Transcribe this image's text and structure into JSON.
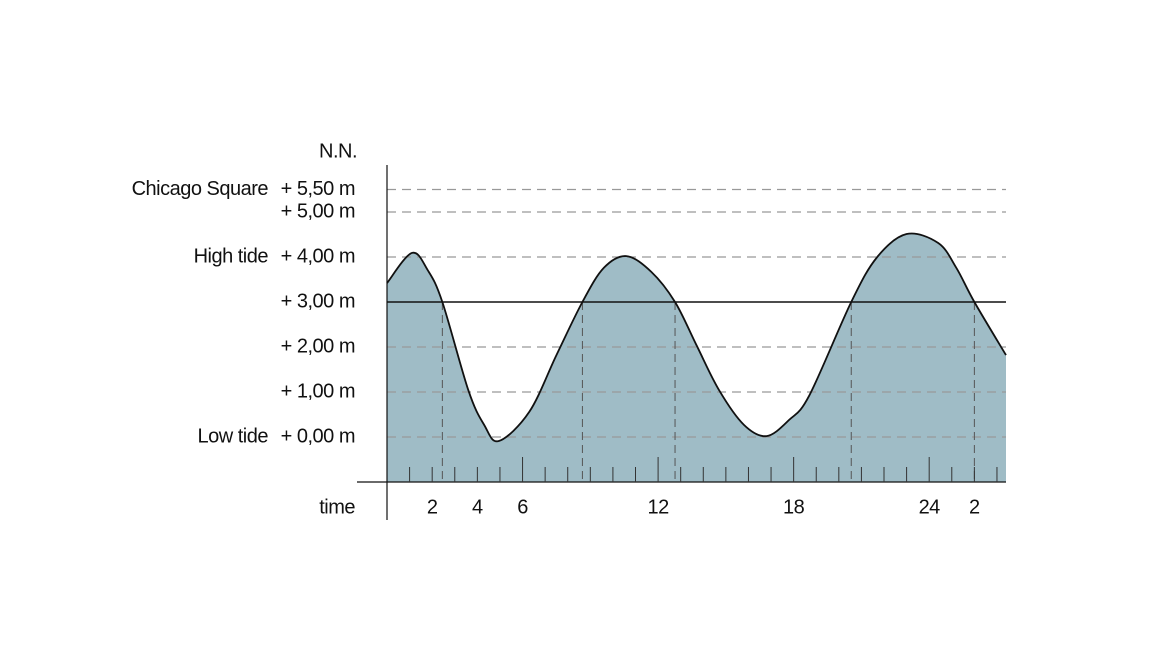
{
  "chart_data": {
    "type": "area",
    "ylabel": "N.N.",
    "xlabel": "time",
    "annotations": [
      {
        "text": "Chicago Square",
        "y": 5.5
      },
      {
        "text": "High tide",
        "y": 4
      },
      {
        "text": "Low tide",
        "y": 0
      }
    ],
    "xlim": [
      0,
      27.4
    ],
    "ylim": [
      -1,
      6
    ],
    "xticks": [
      2,
      4,
      6,
      12,
      18,
      24,
      {
        "value": 26,
        "label": "2"
      }
    ],
    "minor_xticks": [
      1,
      2,
      3,
      4,
      5,
      6,
      7,
      8,
      9,
      10,
      11,
      12,
      13,
      14,
      15,
      16,
      17,
      18,
      19,
      20,
      21,
      22,
      23,
      24,
      25,
      26,
      27
    ],
    "yticks": [
      {
        "value": 0,
        "label": "+ 0,00 m"
      },
      {
        "value": 1,
        "label": "+ 1,00 m"
      },
      {
        "value": 2,
        "label": "+ 2,00 m"
      },
      {
        "value": 3,
        "label": "+ 3,00 m"
      },
      {
        "value": 4,
        "label": "+ 4,00 m"
      },
      {
        "value": 5,
        "label": "+ 5,00 m"
      },
      {
        "value": 5.5,
        "label": "+ 5,50 m"
      }
    ],
    "reference_line": 3,
    "grid": true,
    "color": "#9fbcc6",
    "x": [
      0,
      1.1,
      1.8,
      2.45,
      3.6,
      4.3,
      4.95,
      6.3,
      7.5,
      8.65,
      9.6,
      10.6,
      11.7,
      12.75,
      13.7,
      14.7,
      15.8,
      16.8,
      17.8,
      18.7,
      20.55,
      21.7,
      23,
      24.4,
      25.2,
      26,
      27.4
    ],
    "values": [
      3.42,
      4.09,
      3.71,
      3.0,
      1.04,
      0.27,
      -0.09,
      0.56,
      1.82,
      3.0,
      3.76,
      4.02,
      3.67,
      3.0,
      2.04,
      1.04,
      0.27,
      0.02,
      0.38,
      0.93,
      3.0,
      4.0,
      4.51,
      4.31,
      3.76,
      3.0,
      1.82
    ]
  }
}
